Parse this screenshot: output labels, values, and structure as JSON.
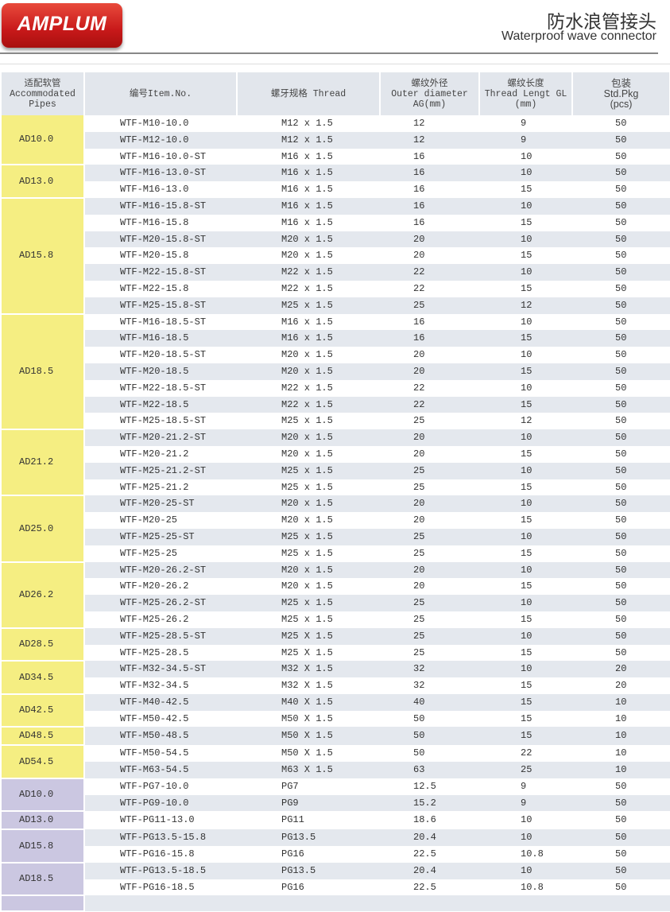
{
  "brand": {
    "logo_text": "AMPLUM",
    "colors": {
      "logo": "#c8191a",
      "steel_group": "#f5ee82",
      "pg_group": "#cbc7e1",
      "row_alt": "#e4e8ee"
    }
  },
  "header": {
    "title_cn": "防水浪管接头",
    "title_en": "Waterproof wave connector"
  },
  "columns": {
    "pipes": [
      "适配软管",
      "Accommodated",
      "Pipes"
    ],
    "item": [
      "编号Item.No."
    ],
    "thread": [
      "螺牙规格  Thread"
    ],
    "od": [
      "螺纹外径",
      "Outer diameter",
      "AG(mm)"
    ],
    "gl": [
      "螺纹长度",
      "Thread Lengt GL",
      "(mm)"
    ],
    "pkg": [
      "包装",
      "Std.Pkg",
      "(pcs)"
    ]
  },
  "groups": [
    {
      "pipe": "AD10.0",
      "type": "yellow",
      "rows": [
        [
          "WTF-M10-10.0",
          "M12 x 1.5",
          "12",
          "9",
          "50"
        ],
        [
          "WTF-M12-10.0",
          "M12 x 1.5",
          "12",
          "9",
          "50"
        ],
        [
          "WTF-M16-10.0-ST",
          "M16 x 1.5",
          "16",
          "10",
          "50"
        ]
      ]
    },
    {
      "pipe": "AD13.0",
      "type": "yellow",
      "rows": [
        [
          "WTF-M16-13.0-ST",
          "M16 x 1.5",
          "16",
          "10",
          "50"
        ],
        [
          "WTF-M16-13.0",
          "M16 x 1.5",
          "16",
          "15",
          "50"
        ]
      ]
    },
    {
      "pipe": "AD15.8",
      "type": "yellow",
      "rows": [
        [
          "WTF-M16-15.8-ST",
          "M16 x 1.5",
          "16",
          "10",
          "50"
        ],
        [
          "WTF-M16-15.8",
          "M16 x 1.5",
          "16",
          "15",
          "50"
        ],
        [
          "WTF-M20-15.8-ST",
          "M20 x 1.5",
          "20",
          "10",
          "50"
        ],
        [
          "WTF-M20-15.8",
          "M20 x 1.5",
          "20",
          "15",
          "50"
        ],
        [
          "WTF-M22-15.8-ST",
          "M22 x 1.5",
          "22",
          "10",
          "50"
        ],
        [
          "WTF-M22-15.8",
          "M22 x 1.5",
          "22",
          "15",
          "50"
        ],
        [
          "WTF-M25-15.8-ST",
          "M25 x 1.5",
          "25",
          "12",
          "50"
        ]
      ]
    },
    {
      "pipe": "AD18.5",
      "type": "yellow",
      "rows": [
        [
          "WTF-M16-18.5-ST",
          "M16 x 1.5",
          "16",
          "10",
          "50"
        ],
        [
          "WTF-M16-18.5",
          "M16 x 1.5",
          "16",
          "15",
          "50"
        ],
        [
          "WTF-M20-18.5-ST",
          "M20 x 1.5",
          "20",
          "10",
          "50"
        ],
        [
          "WTF-M20-18.5",
          "M20 x 1.5",
          "20",
          "15",
          "50"
        ],
        [
          "WTF-M22-18.5-ST",
          "M22 x 1.5",
          "22",
          "10",
          "50"
        ],
        [
          "WTF-M22-18.5",
          "M22 x 1.5",
          "22",
          "15",
          "50"
        ],
        [
          "WTF-M25-18.5-ST",
          "M25 x 1.5",
          "25",
          "12",
          "50"
        ]
      ]
    },
    {
      "pipe": "AD21.2",
      "type": "yellow",
      "rows": [
        [
          "WTF-M20-21.2-ST",
          "M20 x 1.5",
          "20",
          "10",
          "50"
        ],
        [
          "WTF-M20-21.2",
          "M20 x 1.5",
          "20",
          "15",
          "50"
        ],
        [
          "WTF-M25-21.2-ST",
          "M25 x 1.5",
          "25",
          "10",
          "50"
        ],
        [
          "WTF-M25-21.2",
          "M25 x 1.5",
          "25",
          "15",
          "50"
        ]
      ]
    },
    {
      "pipe": "AD25.0",
      "type": "yellow",
      "rows": [
        [
          "WTF-M20-25-ST",
          "M20 x 1.5",
          "20",
          "10",
          "50"
        ],
        [
          "WTF-M20-25",
          "M20 x 1.5",
          "20",
          "15",
          "50"
        ],
        [
          "WTF-M25-25-ST",
          "M25 x 1.5",
          "25",
          "10",
          "50"
        ],
        [
          "WTF-M25-25",
          "M25 x 1.5",
          "25",
          "15",
          "50"
        ]
      ]
    },
    {
      "pipe": "AD26.2",
      "type": "yellow",
      "rows": [
        [
          "WTF-M20-26.2-ST",
          "M20 x 1.5",
          "20",
          "10",
          "50"
        ],
        [
          "WTF-M20-26.2",
          "M20 x 1.5",
          "20",
          "15",
          "50"
        ],
        [
          "WTF-M25-26.2-ST",
          "M25 x 1.5",
          "25",
          "10",
          "50"
        ],
        [
          "WTF-M25-26.2",
          "M25 x 1.5",
          "25",
          "15",
          "50"
        ]
      ]
    },
    {
      "pipe": "AD28.5",
      "type": "yellow",
      "rows": [
        [
          "WTF-M25-28.5-ST",
          "M25 X 1.5",
          "25",
          "10",
          "50"
        ],
        [
          "WTF-M25-28.5",
          "M25 X 1.5",
          "25",
          "15",
          "50"
        ]
      ]
    },
    {
      "pipe": "AD34.5",
      "type": "yellow",
      "rows": [
        [
          "WTF-M32-34.5-ST",
          "M32 X 1.5",
          "32",
          "10",
          "20"
        ],
        [
          "WTF-M32-34.5",
          "M32 X 1.5",
          "32",
          "15",
          "20"
        ]
      ]
    },
    {
      "pipe": "AD42.5",
      "type": "yellow",
      "rows": [
        [
          "WTF-M40-42.5",
          "M40 X 1.5",
          "40",
          "15",
          "10"
        ],
        [
          "WTF-M50-42.5",
          "M50 X 1.5",
          "50",
          "15",
          "10"
        ]
      ]
    },
    {
      "pipe": "AD48.5",
      "type": "yellow",
      "rows": [
        [
          "WTF-M50-48.5",
          "M50 X 1.5",
          "50",
          "15",
          "10"
        ]
      ]
    },
    {
      "pipe": "AD54.5",
      "type": "yellow",
      "rows": [
        [
          "WTF-M50-54.5",
          "M50 X 1.5",
          "50",
          "22",
          "10"
        ],
        [
          "WTF-M63-54.5",
          "M63 X 1.5",
          "63",
          "25",
          "10"
        ]
      ]
    },
    {
      "pipe": "AD10.0",
      "type": "purple",
      "rows": [
        [
          "WTF-PG7-10.0",
          "PG7",
          "12.5",
          "9",
          "50"
        ],
        [
          "WTF-PG9-10.0",
          "PG9",
          "15.2",
          "9",
          "50"
        ]
      ]
    },
    {
      "pipe": "AD13.0",
      "type": "purple",
      "rows": [
        [
          "WTF-PG11-13.0",
          "PG11",
          "18.6",
          "10",
          "50"
        ]
      ]
    },
    {
      "pipe": "AD15.8",
      "type": "purple",
      "rows": [
        [
          "WTF-PG13.5-15.8",
          "PG13.5",
          "20.4",
          "10",
          "50"
        ],
        [
          "WTF-PG16-15.8",
          "PG16",
          "22.5",
          "10.8",
          "50"
        ]
      ]
    },
    {
      "pipe": "AD18.5",
      "type": "purple",
      "rows": [
        [
          "WTF-PG13.5-18.5",
          "PG13.5",
          "20.4",
          "10",
          "50"
        ],
        [
          "WTF-PG16-18.5",
          "PG16",
          "22.5",
          "10.8",
          "50"
        ]
      ]
    }
  ]
}
